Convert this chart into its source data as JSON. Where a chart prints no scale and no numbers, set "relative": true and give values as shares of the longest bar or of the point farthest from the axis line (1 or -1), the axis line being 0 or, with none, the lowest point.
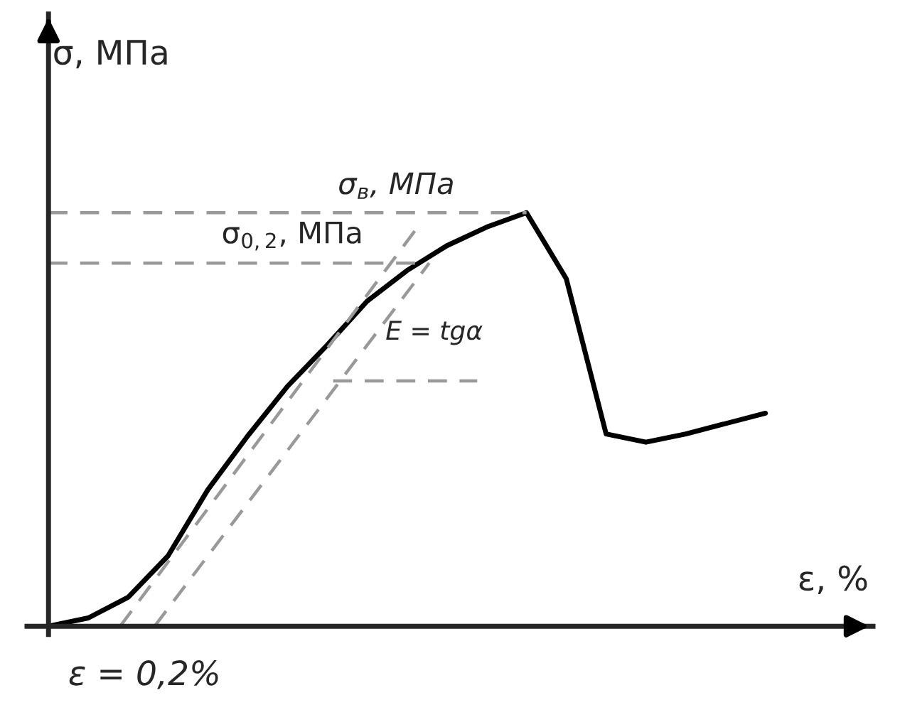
{
  "chart_data": {
    "type": "line",
    "relative": true,
    "xlabel": "ε, %",
    "ylabel": "σ, МПа",
    "categories": [
      null,
      null,
      null,
      null,
      null,
      null,
      null,
      null,
      null,
      null,
      null,
      null,
      null,
      null,
      null,
      null,
      null,
      null,
      null
    ],
    "series": [
      {
        "color": "#000000",
        "values": [
          0,
          0.02,
          0.07,
          0.17,
          0.33,
          0.46,
          0.58,
          0.68,
          0.786,
          0.86,
          0.92,
          0.965,
          1.0,
          0.84,
          0.465,
          0.445,
          0.465,
          0.49,
          0.515
        ]
      }
    ],
    "ref_lines": [
      {
        "axis": "y",
        "value": 1.0,
        "label": "σ$_{в}$, МПа",
        "color": "#999999",
        "line_style": "dashed"
      },
      {
        "axis": "y",
        "value": 0.878,
        "label": "σ$_{0,2}$, МПа",
        "color": "#999999",
        "line_style": "dashed"
      }
    ],
    "annotations": [
      "E = tgα",
      "ε = 0,2%"
    ]
  }
}
